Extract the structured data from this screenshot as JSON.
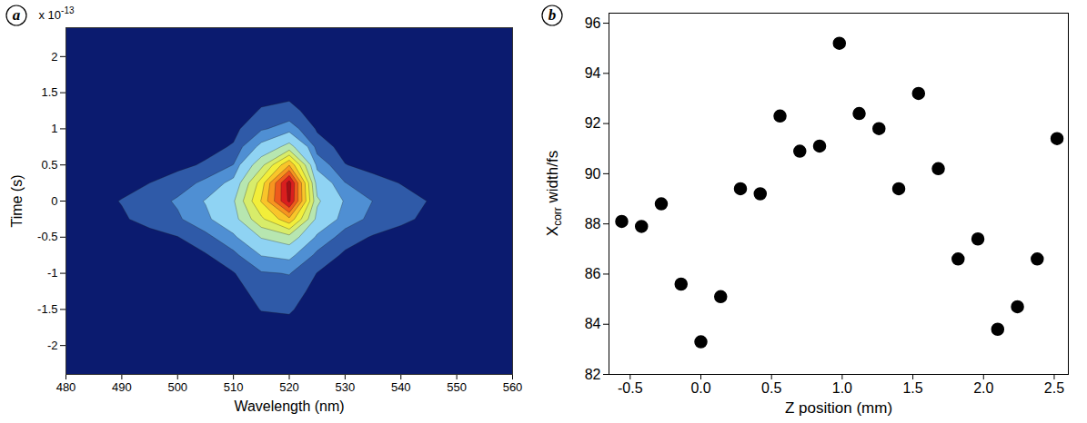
{
  "chart_data": [
    {
      "panel": "a",
      "type": "contour",
      "xlabel": "Wavelength (nm)",
      "ylabel": "Time (s)",
      "y_multiplier": {
        "base": "x 10",
        "exponent": "-13"
      },
      "xlim": [
        480,
        560
      ],
      "xticks": [
        480,
        490,
        500,
        510,
        520,
        530,
        540,
        550,
        560
      ],
      "ylim": [
        -2.4,
        2.4
      ],
      "yticks": [
        -2,
        -1.5,
        -1,
        -0.5,
        0,
        0.5,
        1,
        1.5,
        2
      ],
      "grid": false,
      "x": [
        480,
        485,
        490,
        495,
        500,
        505,
        510,
        515,
        520,
        525,
        530,
        535,
        540,
        545,
        550,
        555,
        560
      ],
      "y": [
        -2.25,
        -2,
        -1.75,
        -1.5,
        -1.25,
        -1,
        -0.75,
        -0.5,
        -0.25,
        0,
        0.25,
        0.5,
        0.75,
        1,
        1.25,
        1.5,
        1.75,
        2,
        2.25
      ],
      "z": [
        [
          0,
          0,
          0,
          0,
          0,
          0,
          0,
          0,
          0,
          0,
          0,
          0,
          0,
          0,
          0,
          0,
          0
        ],
        [
          0,
          0,
          0,
          0,
          0,
          0,
          0,
          0.001,
          0.002,
          0,
          0,
          0,
          0,
          0,
          0,
          0,
          0
        ],
        [
          0,
          0,
          0,
          0,
          0,
          0,
          0,
          0.006,
          0.007,
          0,
          0,
          0,
          0,
          0,
          0,
          0,
          0
        ],
        [
          0,
          0,
          0,
          0,
          0,
          0,
          0.001,
          0.016,
          0.018,
          0.001,
          0,
          0,
          0,
          0,
          0,
          0,
          0
        ],
        [
          0,
          0,
          0,
          0,
          0,
          0.001,
          0.004,
          0.026,
          0.03,
          0.005,
          0.001,
          0,
          0,
          0,
          0,
          0,
          0
        ],
        [
          0,
          0,
          0,
          0,
          0,
          0.004,
          0.013,
          0.045,
          0.052,
          0.014,
          0.003,
          0.001,
          0,
          0,
          0,
          0,
          0
        ],
        [
          0,
          0,
          0,
          0.001,
          0.003,
          0.012,
          0.037,
          0.102,
          0.116,
          0.038,
          0.009,
          0.002,
          0,
          0,
          0,
          0,
          0
        ],
        [
          0.001,
          0.002,
          0.003,
          0.007,
          0.014,
          0.036,
          0.085,
          0.206,
          0.262,
          0.086,
          0.03,
          0.012,
          0.006,
          0.003,
          0.001,
          0,
          0
        ],
        [
          0.002,
          0.006,
          0.012,
          0.023,
          0.043,
          0.084,
          0.16,
          0.378,
          0.574,
          0.17,
          0.073,
          0.038,
          0.02,
          0.01,
          0.005,
          0.002,
          0.001
        ],
        [
          0.003,
          0.008,
          0.016,
          0.03,
          0.056,
          0.104,
          0.188,
          0.508,
          0.923,
          0.215,
          0.091,
          0.049,
          0.027,
          0.014,
          0.007,
          0.003,
          0.001
        ],
        [
          0.001,
          0.004,
          0.008,
          0.015,
          0.03,
          0.06,
          0.119,
          0.448,
          0.946,
          0.157,
          0.051,
          0.025,
          0.014,
          0.007,
          0.003,
          0.001,
          0
        ],
        [
          0,
          0.001,
          0.001,
          0.003,
          0.007,
          0.019,
          0.051,
          0.268,
          0.595,
          0.078,
          0.016,
          0.006,
          0.002,
          0.001,
          0,
          0,
          0
        ],
        [
          0,
          0,
          0,
          0,
          0.001,
          0.005,
          0.018,
          0.118,
          0.237,
          0.031,
          0.004,
          0.001,
          0,
          0,
          0,
          0,
          0
        ],
        [
          0,
          0,
          0,
          0,
          0,
          0,
          0.006,
          0.044,
          0.071,
          0.011,
          0.001,
          0,
          0,
          0,
          0,
          0,
          0
        ],
        [
          0,
          0,
          0,
          0,
          0,
          0,
          0.002,
          0.017,
          0.023,
          0.003,
          0,
          0,
          0,
          0,
          0,
          0,
          0
        ],
        [
          0,
          0,
          0,
          0,
          0,
          0,
          0,
          0.007,
          0.008,
          0.001,
          0,
          0,
          0,
          0,
          0,
          0,
          0
        ],
        [
          0,
          0,
          0,
          0,
          0,
          0,
          0,
          0.002,
          0.003,
          0,
          0,
          0,
          0,
          0,
          0,
          0,
          0
        ],
        [
          0,
          0,
          0,
          0,
          0,
          0,
          0,
          0.001,
          0.001,
          0,
          0,
          0,
          0,
          0,
          0,
          0,
          0
        ],
        [
          0,
          0,
          0,
          0,
          0,
          0,
          0,
          0,
          0,
          0,
          0,
          0,
          0,
          0,
          0,
          0,
          0
        ]
      ],
      "levels": [
        0.015,
        0.05,
        0.1,
        0.2,
        0.3,
        0.4,
        0.5,
        0.6,
        0.7,
        0.8,
        0.9
      ],
      "colors": [
        "#0b1b6f",
        "#2f5aa8",
        "#4f8fd3",
        "#8fd3f3",
        "#b7e6b0",
        "#d8ec6a",
        "#f2ee3a",
        "#f9c52a",
        "#f79420",
        "#ee5a1c",
        "#d91e1e",
        "#a50f15"
      ]
    },
    {
      "panel": "b",
      "type": "scatter",
      "xlabel": "Z position (mm)",
      "ylabel": {
        "text": "X",
        "subscript": "corr",
        "suffix": " width/fs"
      },
      "xlim": [
        -0.65,
        2.6
      ],
      "xticks": [
        -0.5,
        {
          "value": 0,
          "label": "0.0"
        },
        0.5,
        {
          "value": 1,
          "label": "1.0"
        },
        1.5,
        {
          "value": 2,
          "label": "2.0"
        },
        2.5
      ],
      "ylim": [
        82,
        96.4
      ],
      "yticks": [
        82,
        84,
        86,
        88,
        90,
        92,
        94,
        96
      ],
      "grid": false,
      "color": "#000000",
      "marker": "circle",
      "x": [
        -0.56,
        -0.42,
        -0.28,
        -0.14,
        0,
        0.14,
        0.28,
        0.42,
        0.56,
        0.7,
        0.84,
        0.98,
        1.12,
        1.26,
        1.4,
        1.54,
        1.68,
        1.82,
        1.96,
        2.1,
        2.24,
        2.38,
        2.52
      ],
      "values": [
        88.1,
        87.9,
        88.8,
        85.6,
        83.3,
        85.1,
        89.4,
        89.2,
        92.3,
        90.9,
        91.1,
        95.2,
        92.4,
        91.8,
        89.4,
        93.2,
        90.2,
        86.6,
        87.4,
        83.8,
        84.7,
        86.6,
        91.4
      ]
    }
  ]
}
